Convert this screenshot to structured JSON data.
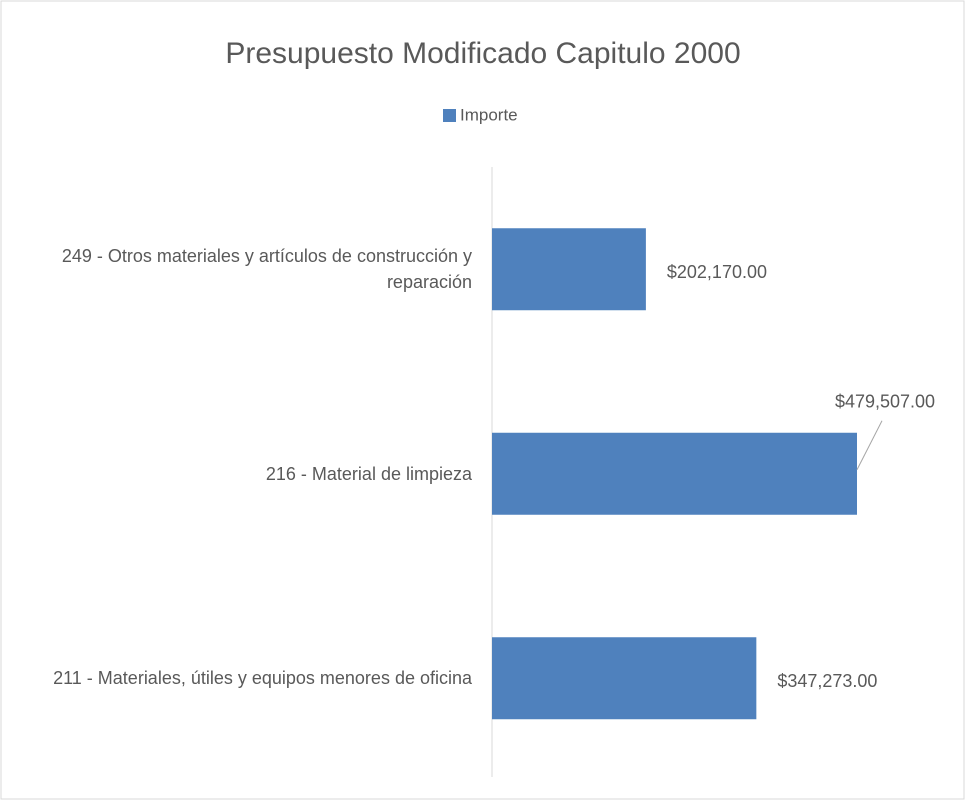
{
  "chart_data": {
    "type": "bar",
    "orientation": "horizontal",
    "title": "Presupuesto Modificado Capitulo 2000",
    "categories": [
      "249 - Otros materiales y artículos de construcción y reparación",
      "216 - Material de limpieza",
      "211 - Materiales, útiles y equipos menores de oficina"
    ],
    "series": [
      {
        "name": "Importe",
        "color": "#4f81bd",
        "values": [
          202170,
          479507,
          347273
        ],
        "value_labels": [
          "$202,170.00",
          "$479,507.00",
          "$347,273.00"
        ]
      }
    ],
    "legend": "top"
  }
}
